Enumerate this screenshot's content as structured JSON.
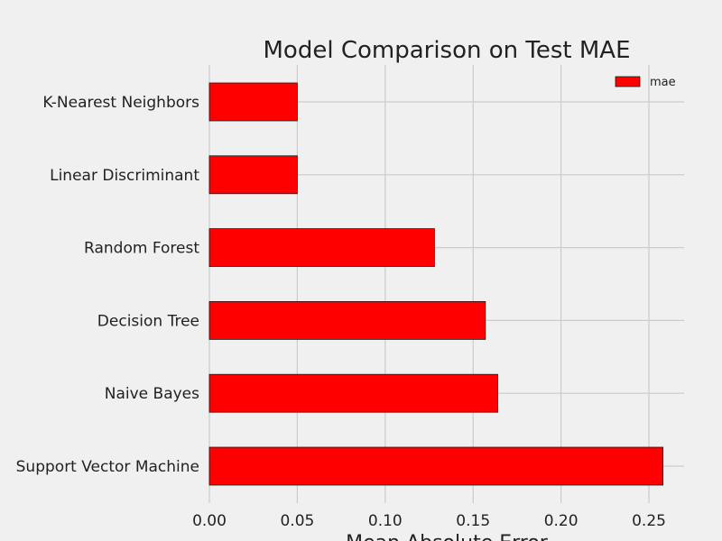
{
  "chart_data": {
    "type": "bar",
    "orientation": "horizontal",
    "title": "Model Comparison on Test MAE",
    "xlabel": "Mean Absolute Error",
    "ylabel": "",
    "categories": [
      "K-Nearest Neighbors",
      "Linear Discriminant",
      "Random Forest",
      "Decision Tree",
      "Naive Bayes",
      "Support Vector Machine"
    ],
    "series": [
      {
        "name": "mae",
        "values": [
          0.05,
          0.05,
          0.128,
          0.157,
          0.164,
          0.258
        ]
      }
    ],
    "xlim": [
      0,
      0.27
    ],
    "xticks": [
      0.0,
      0.05,
      0.1,
      0.15,
      0.2,
      0.25
    ],
    "xtick_labels": [
      "0.00",
      "0.05",
      "0.10",
      "0.15",
      "0.20",
      "0.25"
    ],
    "grid": true,
    "legend": {
      "position": "top-right",
      "entries": [
        "mae"
      ]
    },
    "colors": {
      "bar": "#ff0000",
      "bar_edge": "#1a1a1a",
      "grid": "#cbcbcb",
      "background": "#f0f0f0",
      "text": "#222222"
    }
  }
}
